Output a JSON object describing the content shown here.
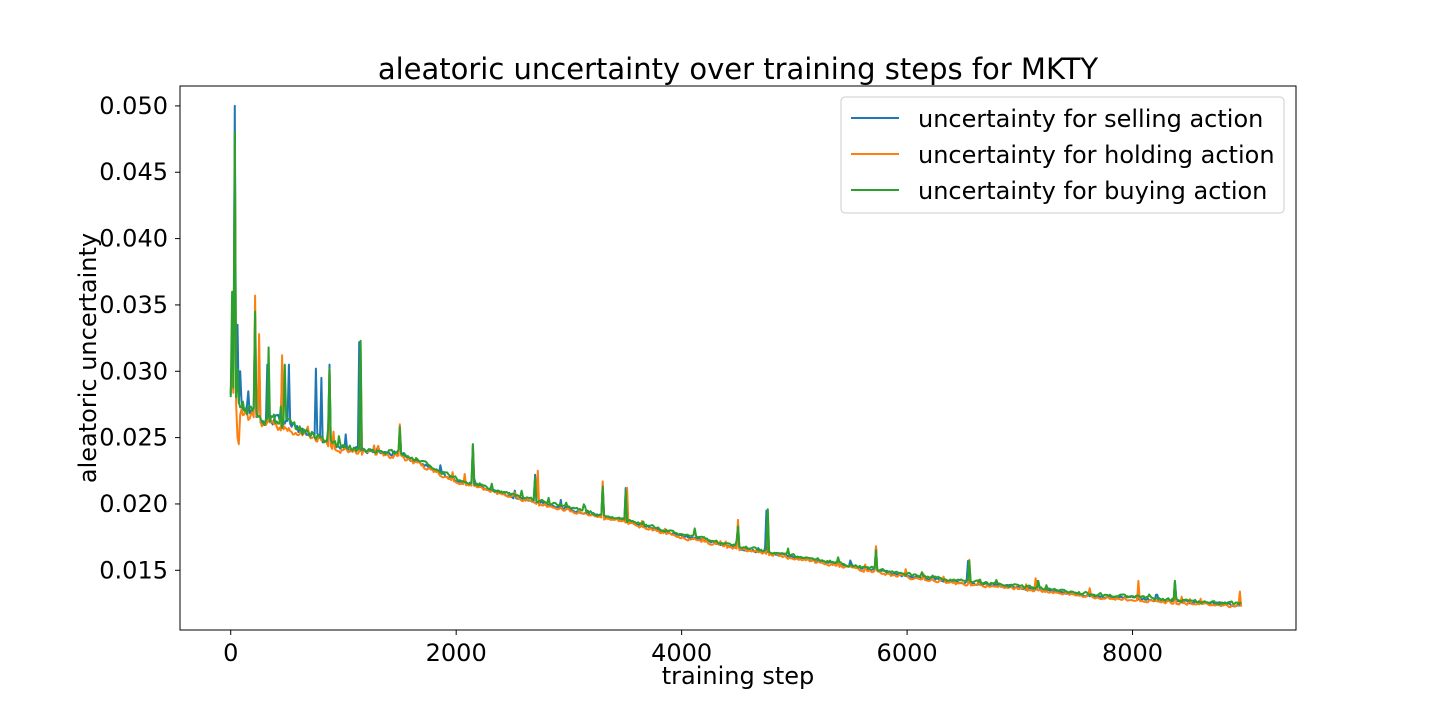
{
  "chart_data": {
    "type": "line",
    "title": "aleatoric uncertainty over training steps for MKTY",
    "xlabel": "training step",
    "ylabel": "aleatoric uncertainty",
    "xlim": [
      -450,
      9450
    ],
    "ylim": [
      0.0105,
      0.0515
    ],
    "xticks": [
      0,
      2000,
      4000,
      6000,
      8000
    ],
    "xtick_labels": [
      "0",
      "2000",
      "4000",
      "6000",
      "8000"
    ],
    "yticks": [
      0.015,
      0.02,
      0.025,
      0.03,
      0.035,
      0.04,
      0.045,
      0.05
    ],
    "ytick_labels": [
      "0.015",
      "0.020",
      "0.025",
      "0.030",
      "0.035",
      "0.040",
      "0.045",
      "0.050"
    ],
    "grid": false,
    "legend_position": "top-right",
    "x_range": [
      0,
      8964
    ],
    "series": [
      {
        "name": "uncertainty for selling action",
        "color": "#1f77b4",
        "trend": [
          [
            0,
            0.0285
          ],
          [
            60,
            0.0275
          ],
          [
            200,
            0.0268
          ],
          [
            500,
            0.026
          ],
          [
            1000,
            0.0242
          ],
          [
            1500,
            0.0238
          ],
          [
            2000,
            0.0218
          ],
          [
            2500,
            0.0206
          ],
          [
            3000,
            0.0196
          ],
          [
            3500,
            0.0187
          ],
          [
            4000,
            0.0176
          ],
          [
            4500,
            0.0167
          ],
          [
            5000,
            0.016
          ],
          [
            5500,
            0.0153
          ],
          [
            6000,
            0.0146
          ],
          [
            6500,
            0.0141
          ],
          [
            7000,
            0.0137
          ],
          [
            7500,
            0.0132
          ],
          [
            8000,
            0.0129
          ],
          [
            8500,
            0.0126
          ],
          [
            8964,
            0.0124
          ]
        ],
        "spikes": [
          [
            10,
            0.0315
          ],
          [
            30,
            0.05
          ],
          [
            55,
            0.0335
          ],
          [
            80,
            0.03
          ],
          [
            150,
            0.0285
          ],
          [
            210,
            0.0342
          ],
          [
            250,
            0.031
          ],
          [
            320,
            0.0305
          ],
          [
            460,
            0.0305
          ],
          [
            520,
            0.0305
          ],
          [
            760,
            0.0302
          ],
          [
            800,
            0.0295
          ],
          [
            870,
            0.0305
          ],
          [
            1140,
            0.0322
          ],
          [
            1500,
            0.0255
          ],
          [
            2150,
            0.0245
          ],
          [
            2700,
            0.0222
          ],
          [
            3300,
            0.0215
          ],
          [
            3500,
            0.0212
          ],
          [
            4500,
            0.0185
          ],
          [
            4750,
            0.0195
          ],
          [
            5720,
            0.0168
          ],
          [
            6540,
            0.0157
          ],
          [
            7150,
            0.0142
          ],
          [
            8370,
            0.0142
          ]
        ]
      },
      {
        "name": "uncertainty for holding action",
        "color": "#ff7f0e",
        "trend": [
          [
            0,
            0.0282
          ],
          [
            60,
            0.027
          ],
          [
            200,
            0.0265
          ],
          [
            500,
            0.0257
          ],
          [
            1000,
            0.024
          ],
          [
            1500,
            0.0236
          ],
          [
            2000,
            0.0217
          ],
          [
            2500,
            0.0205
          ],
          [
            3000,
            0.0195
          ],
          [
            3500,
            0.0186
          ],
          [
            4000,
            0.0175
          ],
          [
            4500,
            0.0166
          ],
          [
            5000,
            0.0159
          ],
          [
            5500,
            0.0152
          ],
          [
            6000,
            0.0145
          ],
          [
            6500,
            0.014
          ],
          [
            7000,
            0.0136
          ],
          [
            7500,
            0.0131
          ],
          [
            8000,
            0.0128
          ],
          [
            8500,
            0.0125
          ],
          [
            8964,
            0.0123
          ]
        ],
        "spikes": [
          [
            10,
            0.03
          ],
          [
            35,
            0.047
          ],
          [
            60,
            0.025
          ],
          [
            75,
            0.0245
          ],
          [
            220,
            0.0357
          ],
          [
            250,
            0.0328
          ],
          [
            460,
            0.0312
          ],
          [
            880,
            0.0302
          ],
          [
            1150,
            0.0318
          ],
          [
            1500,
            0.026
          ],
          [
            2150,
            0.0243
          ],
          [
            2720,
            0.0225
          ],
          [
            3300,
            0.0217
          ],
          [
            3520,
            0.0212
          ],
          [
            4500,
            0.0188
          ],
          [
            4760,
            0.0194
          ],
          [
            5720,
            0.0168
          ],
          [
            6550,
            0.0158
          ],
          [
            7140,
            0.0144
          ],
          [
            8050,
            0.0142
          ],
          [
            8370,
            0.014
          ],
          [
            8950,
            0.0134
          ]
        ]
      },
      {
        "name": "uncertainty for buying action",
        "color": "#2ca02c",
        "trend": [
          [
            0,
            0.0286
          ],
          [
            60,
            0.0274
          ],
          [
            200,
            0.0268
          ],
          [
            500,
            0.0259
          ],
          [
            1000,
            0.0243
          ],
          [
            1500,
            0.0239
          ],
          [
            2000,
            0.0219
          ],
          [
            2500,
            0.0207
          ],
          [
            3000,
            0.0197
          ],
          [
            3500,
            0.0188
          ],
          [
            4000,
            0.0177
          ],
          [
            4500,
            0.0168
          ],
          [
            5000,
            0.0161
          ],
          [
            5500,
            0.0154
          ],
          [
            6000,
            0.0147
          ],
          [
            6500,
            0.0142
          ],
          [
            7000,
            0.0138
          ],
          [
            7500,
            0.0133
          ],
          [
            8000,
            0.013
          ],
          [
            8500,
            0.0127
          ],
          [
            8964,
            0.0125
          ]
        ],
        "spikes": [
          [
            8,
            0.036
          ],
          [
            38,
            0.048
          ],
          [
            60,
            0.0302
          ],
          [
            210,
            0.0345
          ],
          [
            340,
            0.0318
          ],
          [
            480,
            0.0305
          ],
          [
            880,
            0.0302
          ],
          [
            1150,
            0.0323
          ],
          [
            1500,
            0.0258
          ],
          [
            2150,
            0.0245
          ],
          [
            2700,
            0.022
          ],
          [
            3300,
            0.0213
          ],
          [
            3500,
            0.021
          ],
          [
            4500,
            0.0183
          ],
          [
            4760,
            0.0196
          ],
          [
            5720,
            0.0165
          ],
          [
            6550,
            0.0157
          ],
          [
            7160,
            0.0142
          ],
          [
            8380,
            0.0142
          ]
        ]
      }
    ]
  }
}
